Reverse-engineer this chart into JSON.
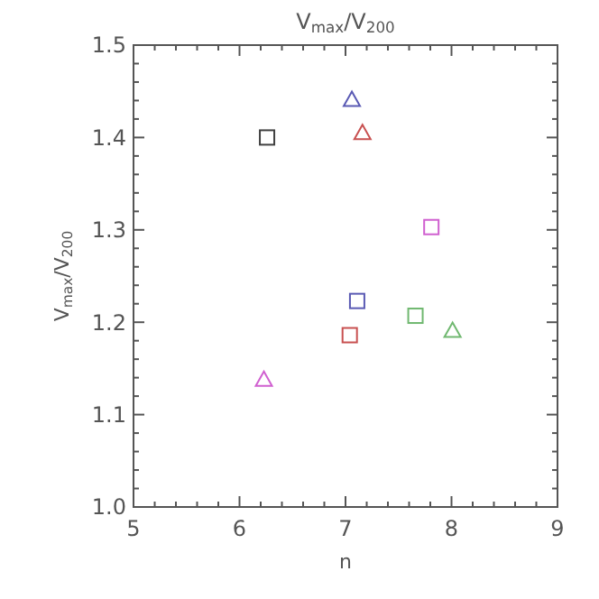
{
  "chart_data": {
    "type": "scatter",
    "title": "V$_{max}$/V$_{200}$",
    "xlabel": "n",
    "ylabel": "V$_{max}$/V$_{200}$",
    "xlim": [
      5,
      9
    ],
    "ylim": [
      1.0,
      1.5
    ],
    "xticks": [
      5,
      {
        "value": 5.2,
        "label": null
      },
      {
        "value": 5.4,
        "label": null
      },
      {
        "value": 5.6,
        "label": null
      },
      {
        "value": 5.8,
        "label": null
      },
      6,
      {
        "value": 6.2,
        "label": null
      },
      {
        "value": 6.4,
        "label": null
      },
      {
        "value": 6.6,
        "label": null
      },
      {
        "value": 6.8,
        "label": null
      },
      7,
      {
        "value": 7.2,
        "label": null
      },
      {
        "value": 7.4,
        "label": null
      },
      {
        "value": 7.6,
        "label": null
      },
      {
        "value": 7.8,
        "label": null
      },
      8,
      {
        "value": 8.2,
        "label": null
      },
      {
        "value": 8.4,
        "label": null
      },
      {
        "value": 8.6,
        "label": null
      },
      {
        "value": 8.8,
        "label": null
      },
      9
    ],
    "yticks": [
      {
        "value": 1.0,
        "label": "1.0"
      },
      {
        "value": 1.02,
        "label": null
      },
      {
        "value": 1.04,
        "label": null
      },
      {
        "value": 1.06,
        "label": null
      },
      {
        "value": 1.08,
        "label": null
      },
      {
        "value": 1.1,
        "label": "1.1"
      },
      {
        "value": 1.12,
        "label": null
      },
      {
        "value": 1.14,
        "label": null
      },
      {
        "value": 1.16,
        "label": null
      },
      {
        "value": 1.18,
        "label": null
      },
      {
        "value": 1.2,
        "label": "1.2"
      },
      {
        "value": 1.22,
        "label": null
      },
      {
        "value": 1.24,
        "label": null
      },
      {
        "value": 1.26,
        "label": null
      },
      {
        "value": 1.28,
        "label": null
      },
      {
        "value": 1.3,
        "label": "1.3"
      },
      {
        "value": 1.32,
        "label": null
      },
      {
        "value": 1.34,
        "label": null
      },
      {
        "value": 1.36,
        "label": null
      },
      {
        "value": 1.38,
        "label": null
      },
      {
        "value": 1.4,
        "label": "1.4"
      },
      {
        "value": 1.42,
        "label": null
      },
      {
        "value": 1.44,
        "label": null
      },
      {
        "value": 1.46,
        "label": null
      },
      {
        "value": 1.48,
        "label": null
      },
      {
        "value": 1.5,
        "label": "1.5"
      }
    ],
    "grid": false,
    "series": [
      {
        "color": "#404040",
        "marker": "square",
        "x": [
          6.26
        ],
        "values": [
          1.4
        ]
      },
      {
        "color": "#5a5ab4",
        "marker": "triangle",
        "x": [
          7.06
        ],
        "values": [
          1.44
        ]
      },
      {
        "color": "#c85050",
        "marker": "triangle",
        "x": [
          7.16
        ],
        "values": [
          1.404
        ]
      },
      {
        "color": "#d060d0",
        "marker": "square",
        "x": [
          7.81
        ],
        "values": [
          1.303
        ]
      },
      {
        "color": "#5a5ab4",
        "marker": "square",
        "x": [
          7.11
        ],
        "values": [
          1.223
        ]
      },
      {
        "color": "#c85050",
        "marker": "square",
        "x": [
          7.04
        ],
        "values": [
          1.186
        ]
      },
      {
        "color": "#70b870",
        "marker": "square",
        "x": [
          7.66
        ],
        "values": [
          1.207
        ]
      },
      {
        "color": "#70b870",
        "marker": "triangle",
        "x": [
          8.01
        ],
        "values": [
          1.19
        ]
      },
      {
        "color": "#d060d0",
        "marker": "triangle",
        "x": [
          6.23
        ],
        "values": [
          1.137
        ]
      }
    ]
  }
}
